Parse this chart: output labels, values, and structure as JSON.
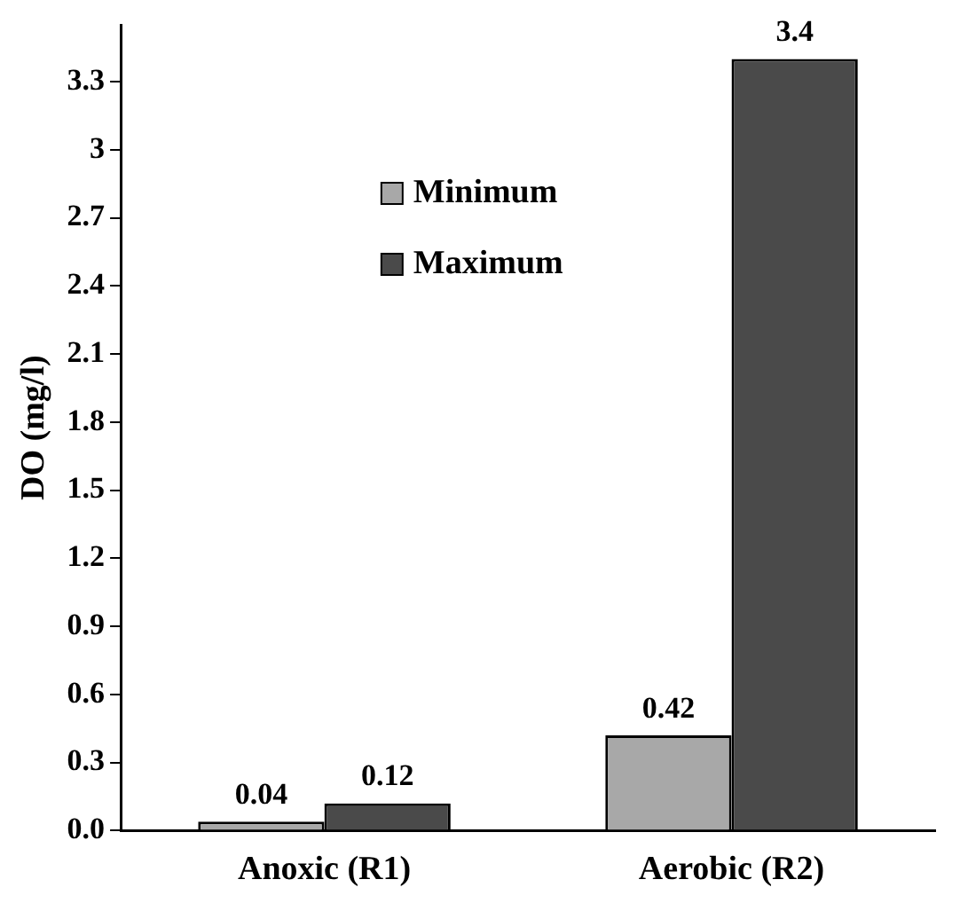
{
  "chart_data": {
    "type": "bar",
    "ylabel": "DO (mg/l)",
    "categories": [
      "Anoxic (R1)",
      "Aerobic (R2)"
    ],
    "series": [
      {
        "name": "Minimum",
        "color": "#a8a8a8",
        "values": [
          0.04,
          0.42
        ]
      },
      {
        "name": "Maximum",
        "color": "#4a4a4a",
        "values": [
          0.12,
          3.4
        ]
      }
    ],
    "ylim": [
      0,
      3.55
    ],
    "yticks": [
      {
        "value": 0,
        "label": "0.0"
      },
      {
        "value": 0.3,
        "label": "0.3"
      },
      {
        "value": 0.6,
        "label": "0.6"
      },
      {
        "value": 0.9,
        "label": "0.9"
      },
      {
        "value": 1.2,
        "label": "1.2"
      },
      {
        "value": 1.5,
        "label": "1.5"
      },
      {
        "value": 1.8,
        "label": "1.8"
      },
      {
        "value": 2.1,
        "label": "2.1"
      },
      {
        "value": 2.4,
        "label": "2.4"
      },
      {
        "value": 2.7,
        "label": "2.7"
      },
      3,
      {
        "value": 3.3,
        "label": "3.3"
      }
    ],
    "data_labels": true,
    "grid": false,
    "legend": "top"
  }
}
